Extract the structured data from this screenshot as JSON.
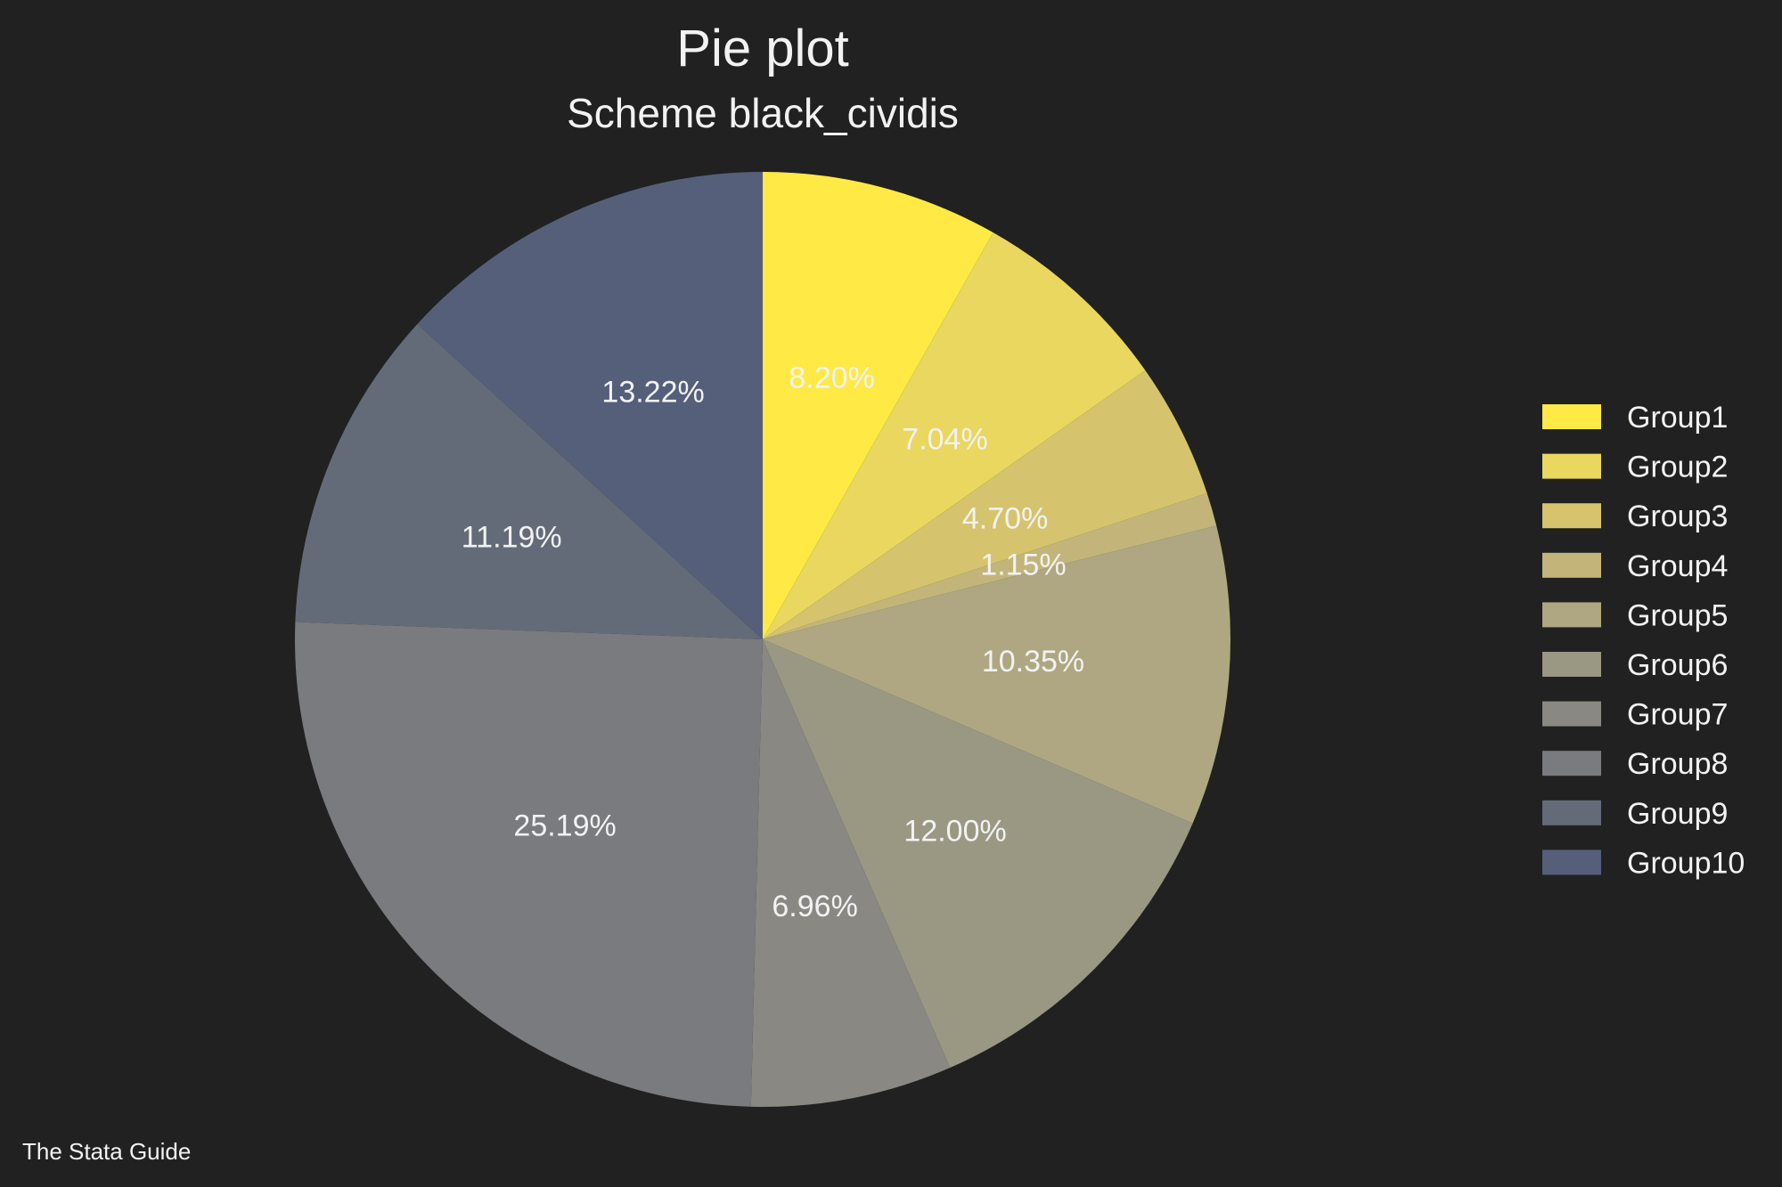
{
  "chart_data": {
    "type": "pie",
    "title": "Pie plot",
    "subtitle": "Scheme black_cividis",
    "note": "The Stata Guide",
    "legend_position": "right",
    "background": "#212121",
    "slices": [
      {
        "name": "Group1",
        "value": 8.2,
        "label": "8.20%",
        "color": "#FFE945"
      },
      {
        "name": "Group2",
        "value": 7.04,
        "label": "7.04%",
        "color": "#E9D760"
      },
      {
        "name": "Group3",
        "value": 4.7,
        "label": "4.70%",
        "color": "#D5C46D"
      },
      {
        "name": "Group4",
        "value": 1.15,
        "label": "1.15%",
        "color": "#C3B57A"
      },
      {
        "name": "Group5",
        "value": 10.35,
        "label": "10.35%",
        "color": "#AFA781"
      },
      {
        "name": "Group6",
        "value": 12.0,
        "label": "12.00%",
        "color": "#9A9783"
      },
      {
        "name": "Group7",
        "value": 6.96,
        "label": "6.96%",
        "color": "#898883"
      },
      {
        "name": "Group8",
        "value": 25.19,
        "label": "25.19%",
        "color": "#7A7B7E"
      },
      {
        "name": "Group9",
        "value": 11.19,
        "label": "11.19%",
        "color": "#646B78"
      },
      {
        "name": "Group10",
        "value": 13.22,
        "label": "13.22%",
        "color": "#555F7A"
      }
    ]
  }
}
